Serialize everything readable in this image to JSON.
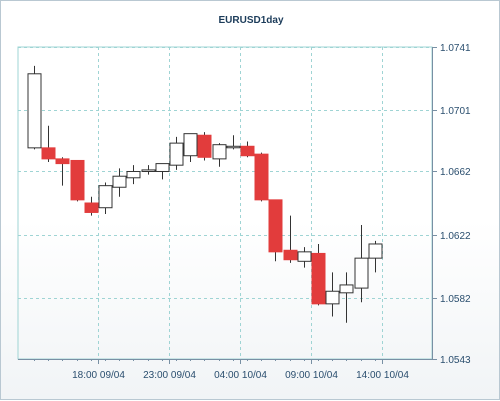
{
  "chart_data": {
    "type": "candlestick",
    "title": "EURUSD1day",
    "xlabel": "",
    "ylabel": "",
    "ylim": [
      1.0543,
      1.0741
    ],
    "y_ticks": [
      "1.0741",
      "1.0701",
      "1.0662",
      "1.0622",
      "1.0582",
      "1.0543"
    ],
    "y_tick_values": [
      1.0741,
      1.0701,
      1.0662,
      1.0622,
      1.0582,
      1.0543
    ],
    "x_tick_labels": [
      "18:00 09/04",
      "23:00 09/04",
      "04:00 10/04",
      "09:00 10/04",
      "14:00 10/04"
    ],
    "x_tick_index": [
      4.5,
      9.5,
      14.5,
      19.5,
      24.5
    ],
    "grid": true,
    "colors": {
      "up": "#ffffff",
      "down": "#e23c3c",
      "grid": "#9fd4d4",
      "axis": "#7890a4",
      "text": "#2a4e6e",
      "title": "#1c3c5a"
    },
    "candles": [
      {
        "open": 1.0677,
        "high": 1.0729,
        "low": 1.0676,
        "close": 1.0724
      },
      {
        "open": 1.0677,
        "high": 1.0691,
        "low": 1.0668,
        "close": 1.067
      },
      {
        "open": 1.067,
        "high": 1.0671,
        "low": 1.0653,
        "close": 1.0667
      },
      {
        "open": 1.0669,
        "high": 1.0669,
        "low": 1.0643,
        "close": 1.0644
      },
      {
        "open": 1.0642,
        "high": 1.0646,
        "low": 1.0634,
        "close": 1.0636
      },
      {
        "open": 1.0639,
        "high": 1.0655,
        "low": 1.0635,
        "close": 1.0653
      },
      {
        "open": 1.0652,
        "high": 1.0664,
        "low": 1.0646,
        "close": 1.0659
      },
      {
        "open": 1.0658,
        "high": 1.0666,
        "low": 1.0654,
        "close": 1.0662
      },
      {
        "open": 1.0662,
        "high": 1.0666,
        "low": 1.066,
        "close": 1.0663
      },
      {
        "open": 1.0662,
        "high": 1.0667,
        "low": 1.0657,
        "close": 1.0667
      },
      {
        "open": 1.0666,
        "high": 1.0684,
        "low": 1.0663,
        "close": 1.068
      },
      {
        "open": 1.0672,
        "high": 1.0686,
        "low": 1.0668,
        "close": 1.0686
      },
      {
        "open": 1.0685,
        "high": 1.0687,
        "low": 1.0669,
        "close": 1.0671
      },
      {
        "open": 1.067,
        "high": 1.068,
        "low": 1.0665,
        "close": 1.0679
      },
      {
        "open": 1.0678,
        "high": 1.0685,
        "low": 1.0676,
        "close": 1.0678
      },
      {
        "open": 1.0678,
        "high": 1.0681,
        "low": 1.0671,
        "close": 1.0672
      },
      {
        "open": 1.0673,
        "high": 1.0674,
        "low": 1.0643,
        "close": 1.0644
      },
      {
        "open": 1.0644,
        "high": 1.0644,
        "low": 1.0605,
        "close": 1.0611
      },
      {
        "open": 1.0612,
        "high": 1.0634,
        "low": 1.0604,
        "close": 1.0606
      },
      {
        "open": 1.0605,
        "high": 1.0614,
        "low": 1.0601,
        "close": 1.0611
      },
      {
        "open": 1.061,
        "high": 1.0616,
        "low": 1.0577,
        "close": 1.0578
      },
      {
        "open": 1.0578,
        "high": 1.0598,
        "low": 1.057,
        "close": 1.0586
      },
      {
        "open": 1.0585,
        "high": 1.0598,
        "low": 1.0566,
        "close": 1.059
      },
      {
        "open": 1.0588,
        "high": 1.0628,
        "low": 1.0579,
        "close": 1.0607
      },
      {
        "open": 1.0607,
        "high": 1.0618,
        "low": 1.0598,
        "close": 1.0616
      }
    ]
  }
}
